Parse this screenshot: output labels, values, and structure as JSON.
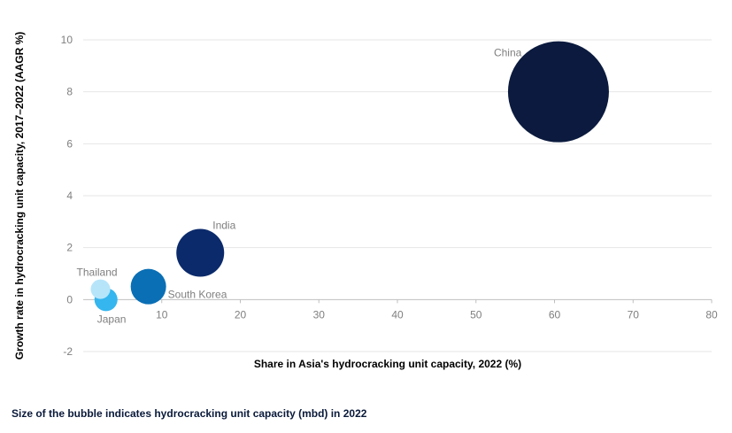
{
  "chart_data": {
    "type": "bubble",
    "xlabel": "Share in Asia's hydrocracking unit capacity, 2022 (%)",
    "ylabel": "Growth rate in hydrocracking unit capacity, 2017–2022 (AAGR %)",
    "xlim": [
      0,
      80
    ],
    "ylim": [
      -2,
      10
    ],
    "xticks": [
      10,
      20,
      30,
      40,
      50,
      60,
      70,
      80
    ],
    "yticks": [
      -2,
      0,
      2,
      4,
      6,
      8,
      10
    ],
    "grid": "horizontal",
    "points": [
      {
        "name": "China",
        "x": 60.5,
        "y": 8.0,
        "size": 57,
        "color": "#0b1a3e"
      },
      {
        "name": "India",
        "x": 14.9,
        "y": 1.8,
        "size": 27,
        "color": "#0b2a6b"
      },
      {
        "name": "South Korea",
        "x": 8.3,
        "y": 0.5,
        "size": 20,
        "color": "#0a6fb5"
      },
      {
        "name": "Japan",
        "x": 2.9,
        "y": 0.0,
        "size": 13,
        "color": "#35b6ee"
      },
      {
        "name": "Thailand",
        "x": 2.2,
        "y": 0.4,
        "size": 11,
        "color": "#b6e5fa"
      }
    ]
  },
  "footnote": "Size of the bubble indicates hydrocracking unit capacity (mbd) in 2022"
}
